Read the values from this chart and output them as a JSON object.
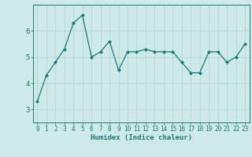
{
  "x": [
    0,
    1,
    2,
    3,
    4,
    5,
    6,
    7,
    8,
    9,
    10,
    11,
    12,
    13,
    14,
    15,
    16,
    17,
    18,
    19,
    20,
    21,
    22,
    23
  ],
  "y": [
    3.3,
    4.3,
    4.8,
    5.3,
    6.3,
    6.6,
    5.0,
    5.2,
    5.6,
    4.5,
    5.2,
    5.2,
    5.3,
    5.2,
    5.2,
    5.2,
    4.8,
    4.4,
    4.4,
    5.2,
    5.2,
    4.8,
    5.0,
    5.5
  ],
  "xlabel": "Humidex (Indice chaleur)",
  "line_color": "#1a7a6e",
  "marker": "D",
  "marker_size": 2.0,
  "bg_color": "#cdeae8",
  "grid_color": "#b0d4d0",
  "tick_label_color": "#1a7a6e",
  "axis_color": "#1a7a6e",
  "ylim": [
    2.5,
    7.0
  ],
  "xlim": [
    -0.5,
    23.5
  ],
  "yticks": [
    3,
    4,
    5,
    6
  ],
  "xticks": [
    0,
    1,
    2,
    3,
    4,
    5,
    6,
    7,
    8,
    9,
    10,
    11,
    12,
    13,
    14,
    15,
    16,
    17,
    18,
    19,
    20,
    21,
    22,
    23
  ],
  "xlabel_fontsize": 6.5,
  "tick_fontsize": 5.5,
  "ytick_fontsize": 6.5
}
